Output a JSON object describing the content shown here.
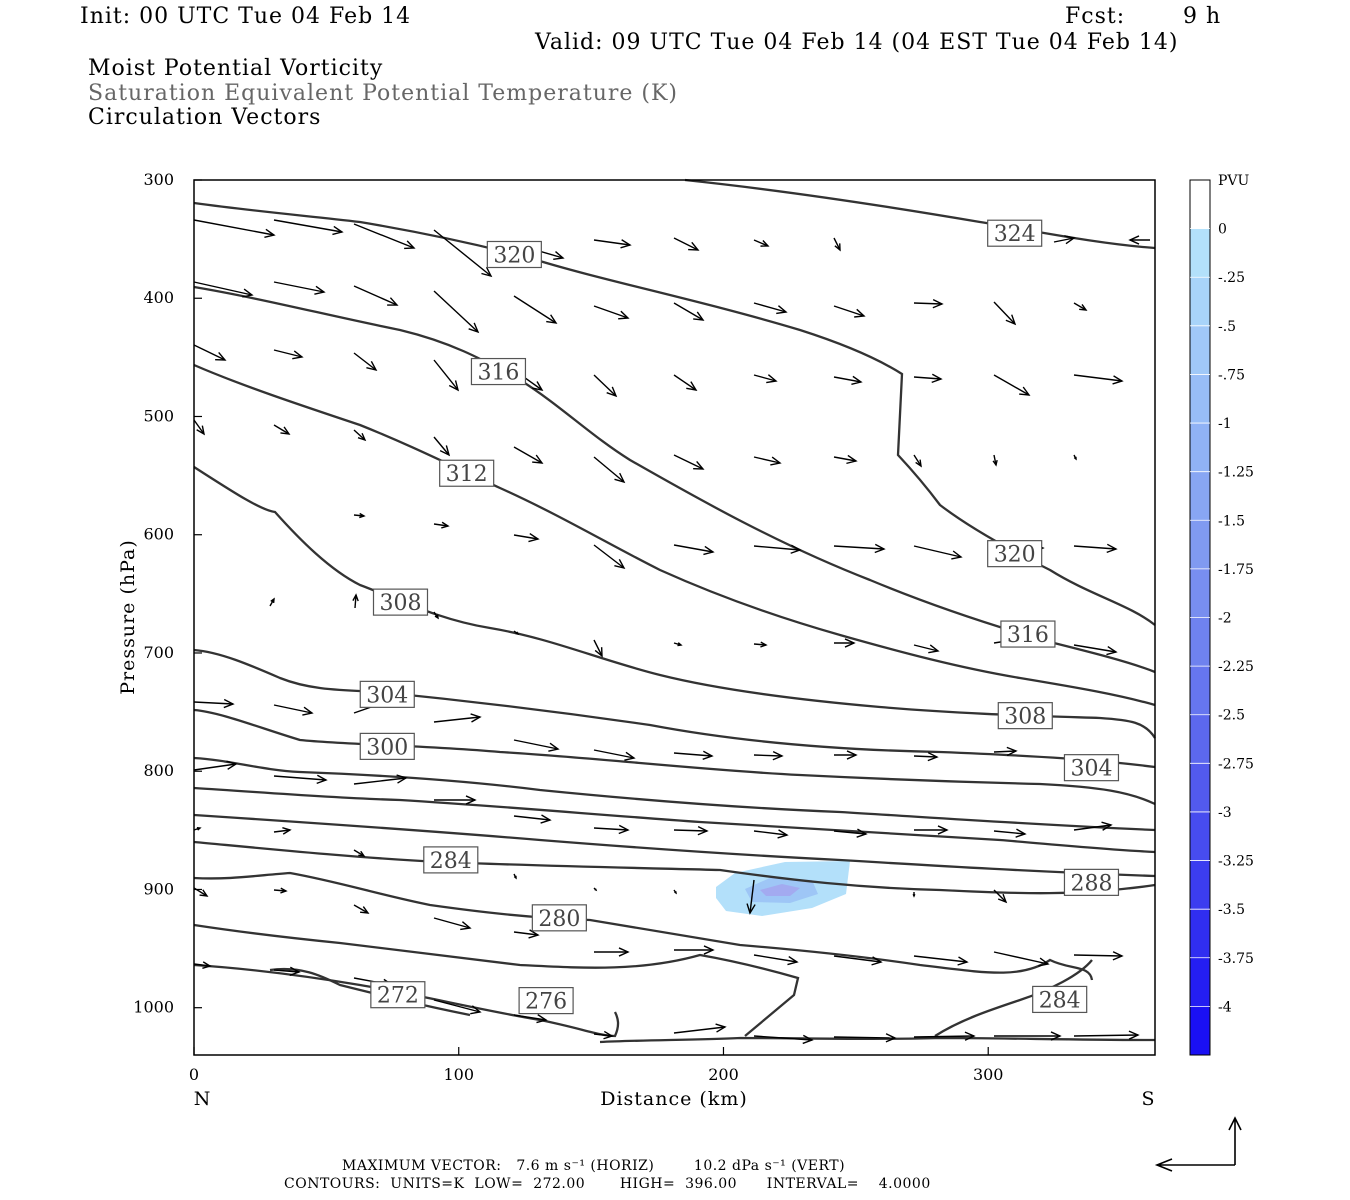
{
  "header": {
    "init": "Init: 00 UTC Tue 04 Feb 14",
    "fcst_label": "Fcst:",
    "fcst_value": "9 h",
    "valid": "Valid: 09 UTC Tue 04 Feb 14 (04 EST Tue 04 Feb 14)",
    "field1": "Moist Potential Vorticity",
    "field2": "Saturation Equivalent Potential Temperature (K)",
    "field3": "Circulation Vectors"
  },
  "colors": {
    "contour": "#333333",
    "field2_text": "#666666",
    "pv_fill_light": "#b3e0fa",
    "pv_fill_mid": "#8fb6f5",
    "pv_fill_dark": "#9f9ff0"
  },
  "chart_data": {
    "type": "contour",
    "title": "Moist Potential Vorticity",
    "xlabel": "Distance (km)",
    "ylabel": "Pressure (hPa)",
    "xlim": [
      0,
      363
    ],
    "ylim": [
      1040,
      300
    ],
    "x_ticks": [
      "0",
      "100",
      "200",
      "300"
    ],
    "y_ticks": [
      "300",
      "400",
      "500",
      "600",
      "700",
      "800",
      "900",
      "1000"
    ],
    "x_end_labels": {
      "left": "N",
      "right": "S"
    },
    "contour_labels": [
      {
        "text": "324",
        "x": 310,
        "p": 345
      },
      {
        "text": "320",
        "x": 121,
        "p": 363
      },
      {
        "text": "320",
        "x": 310,
        "p": 616
      },
      {
        "text": "316",
        "x": 115,
        "p": 462
      },
      {
        "text": "316",
        "x": 315,
        "p": 684
      },
      {
        "text": "312",
        "x": 103,
        "p": 548
      },
      {
        "text": "308",
        "x": 78,
        "p": 657
      },
      {
        "text": "308",
        "x": 314,
        "p": 753
      },
      {
        "text": "304",
        "x": 73,
        "p": 735
      },
      {
        "text": "304",
        "x": 339,
        "p": 797
      },
      {
        "text": "300",
        "x": 73,
        "p": 779
      },
      {
        "text": "288",
        "x": 339,
        "p": 894
      },
      {
        "text": "284",
        "x": 97,
        "p": 875
      },
      {
        "text": "284",
        "x": 327,
        "p": 993
      },
      {
        "text": "280",
        "x": 138,
        "p": 924
      },
      {
        "text": "276",
        "x": 133,
        "p": 994
      },
      {
        "text": "272",
        "x": 77,
        "p": 989
      }
    ],
    "colorbar": {
      "unit": "PVU",
      "labels": [
        "0",
        "-.25",
        "-.5",
        "-.75",
        "-1",
        "-1.25",
        "-1.5",
        "-1.75",
        "-2",
        "-2.25",
        "-2.5",
        "-2.75",
        "-3",
        "-3.25",
        "-3.5",
        "-3.75",
        "-4"
      ],
      "colors": [
        "#ffffff",
        "#b3e1fb",
        "#a8d4fa",
        "#a0c8f8",
        "#98bdf7",
        "#90b2f5",
        "#88a6f3",
        "#809af1",
        "#788ef0",
        "#6f82ef",
        "#6676ef",
        "#5c68ee",
        "#525aee",
        "#474cef",
        "#3c3def",
        "#302ef0",
        "#241ef2",
        "#1a10f4"
      ]
    }
  },
  "footer": {
    "max_vector": "MAXIMUM VECTOR:   7.6 m s⁻¹ (HORIZ)        10.2 dPa s⁻¹ (VERT)",
    "contours": "CONTOURS:  UNITS=K  LOW=  272.00       HIGH=  396.00      INTERVAL=    4.0000"
  }
}
